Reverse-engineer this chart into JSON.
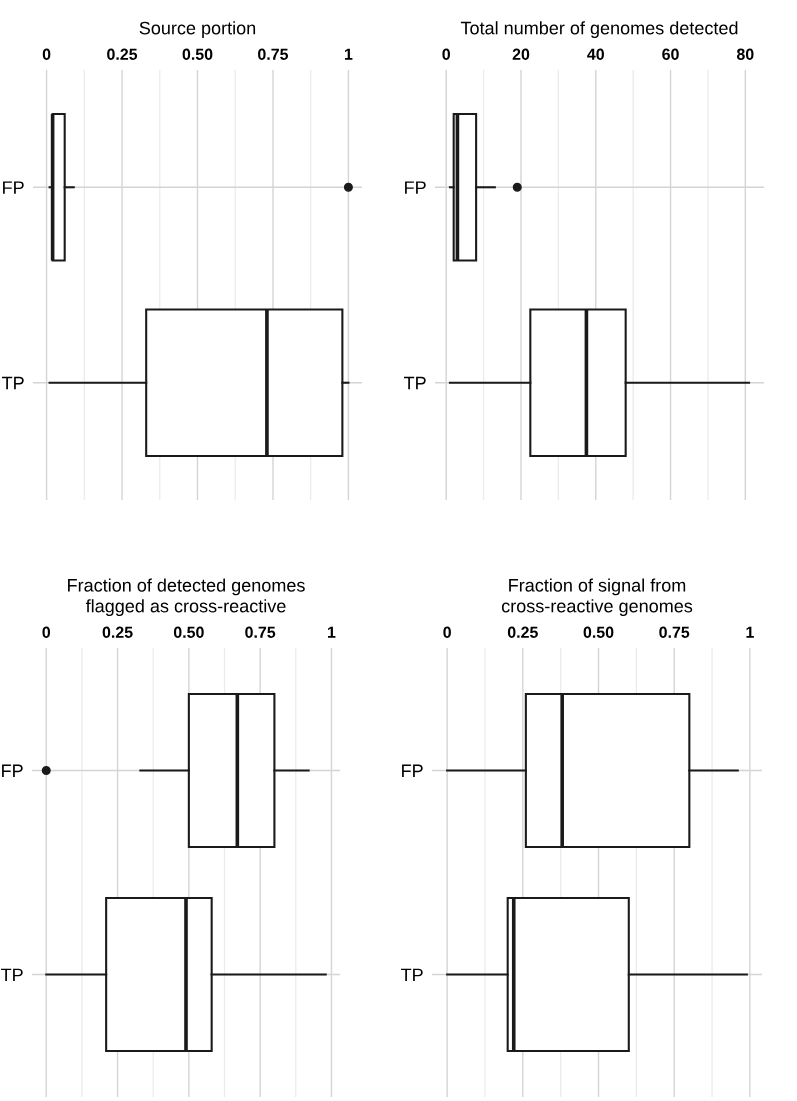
{
  "chart_data": [
    {
      "type": "box",
      "title": "Source portion",
      "orientation": "horizontal",
      "categories": [
        "FP",
        "TP"
      ],
      "boxes": [
        {
          "low": 0.01,
          "q1": 0.02,
          "median": 0.02,
          "q3": 0.06,
          "high": 0.09,
          "outliers": [
            1.0
          ]
        },
        {
          "low": 0.01,
          "q1": 0.33,
          "median": 0.73,
          "q3": 0.98,
          "high": 1.0
        }
      ],
      "xlim": [
        -0.045,
        1.045
      ],
      "xticks": [
        0,
        {
          "value": 0.125,
          "label": null
        },
        0.25,
        {
          "value": 0.375,
          "label": null
        },
        {
          "value": 0.5,
          "label": "0.50"
        },
        {
          "value": 0.625,
          "label": null
        },
        0.75,
        {
          "value": 0.875,
          "label": null
        },
        1
      ],
      "grid": true
    },
    {
      "type": "box",
      "title": "Total number of genomes detected",
      "orientation": "horizontal",
      "categories": [
        "FP",
        "TP"
      ],
      "boxes": [
        {
          "low": 1,
          "q1": 2,
          "median": 3,
          "q3": 8,
          "high": 13,
          "outliers": [
            19
          ]
        },
        {
          "low": 1,
          "q1": 22.5,
          "median": 37.5,
          "q3": 48,
          "high": 81
        }
      ],
      "xlim": [
        -3,
        85
      ],
      "xticks": [
        0,
        {
          "value": 10,
          "label": null
        },
        20,
        {
          "value": 30,
          "label": null
        },
        40,
        {
          "value": 50,
          "label": null
        },
        60,
        {
          "value": 70,
          "label": null
        },
        80
      ],
      "grid": true
    },
    {
      "type": "box",
      "title": "Fraction of detected genomes\nflagged as cross-reactive",
      "orientation": "horizontal",
      "categories": [
        "FP",
        "TP"
      ],
      "boxes": [
        {
          "low": 0.33,
          "q1": 0.5,
          "median": 0.67,
          "q3": 0.8,
          "high": 0.92,
          "outliers": [
            0
          ]
        },
        {
          "low": 0,
          "q1": 0.21,
          "median": 0.49,
          "q3": 0.58,
          "high": 0.98
        }
      ],
      "xlim": [
        -0.05,
        1.03
      ],
      "xticks": [
        0,
        {
          "value": 0.125,
          "label": null
        },
        0.25,
        {
          "value": 0.375,
          "label": null
        },
        {
          "value": 0.5,
          "label": "0.50"
        },
        {
          "value": 0.625,
          "label": null
        },
        0.75,
        {
          "value": 0.875,
          "label": null
        },
        1
      ],
      "grid": true
    },
    {
      "type": "box",
      "title": "Fraction of signal from\ncross-reactive genomes",
      "orientation": "horizontal",
      "categories": [
        "FP",
        "TP"
      ],
      "boxes": [
        {
          "low": 0,
          "q1": 0.26,
          "median": 0.38,
          "q3": 0.8,
          "high": 0.96
        },
        {
          "low": 0,
          "q1": 0.2,
          "median": 0.22,
          "q3": 0.6,
          "high": 0.99
        }
      ],
      "xlim": [
        -0.05,
        1.04
      ],
      "xticks": [
        0,
        {
          "value": 0.125,
          "label": null
        },
        0.25,
        {
          "value": 0.375,
          "label": null
        },
        {
          "value": 0.5,
          "label": "0.50"
        },
        {
          "value": 0.625,
          "label": null
        },
        0.75,
        {
          "value": 0.875,
          "label": null
        },
        1
      ],
      "grid": true
    }
  ]
}
